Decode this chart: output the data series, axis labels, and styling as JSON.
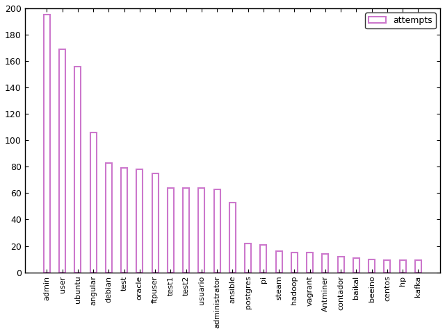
{
  "categories": [
    "admin",
    "user",
    "ubuntu",
    "angular",
    "debian",
    "test",
    "oracle",
    "ftpuser",
    "test1",
    "test2",
    "usuario",
    "administrator",
    "ansible",
    "postgres",
    "pi",
    "steam",
    "hadoop",
    "vagrant",
    "Antminer",
    "contador",
    "baikal",
    "beeino",
    "centos",
    "hp",
    "kafka"
  ],
  "values": [
    195,
    169,
    156,
    106,
    83,
    79,
    78,
    75,
    64,
    64,
    64,
    63,
    53,
    22,
    21,
    16,
    15,
    15,
    14,
    12,
    11,
    10,
    9,
    9,
    9
  ],
  "bar_color": "white",
  "bar_edge_color": "#cc77cc",
  "legend_label": "attempts",
  "ylim": [
    0,
    200
  ],
  "yticks": [
    0,
    20,
    40,
    60,
    80,
    100,
    120,
    140,
    160,
    180,
    200
  ],
  "background_color": "#ffffff",
  "figure_bg": "#ffffff",
  "bar_width": 0.4,
  "tick_fontsize": 9,
  "label_fontsize": 8
}
